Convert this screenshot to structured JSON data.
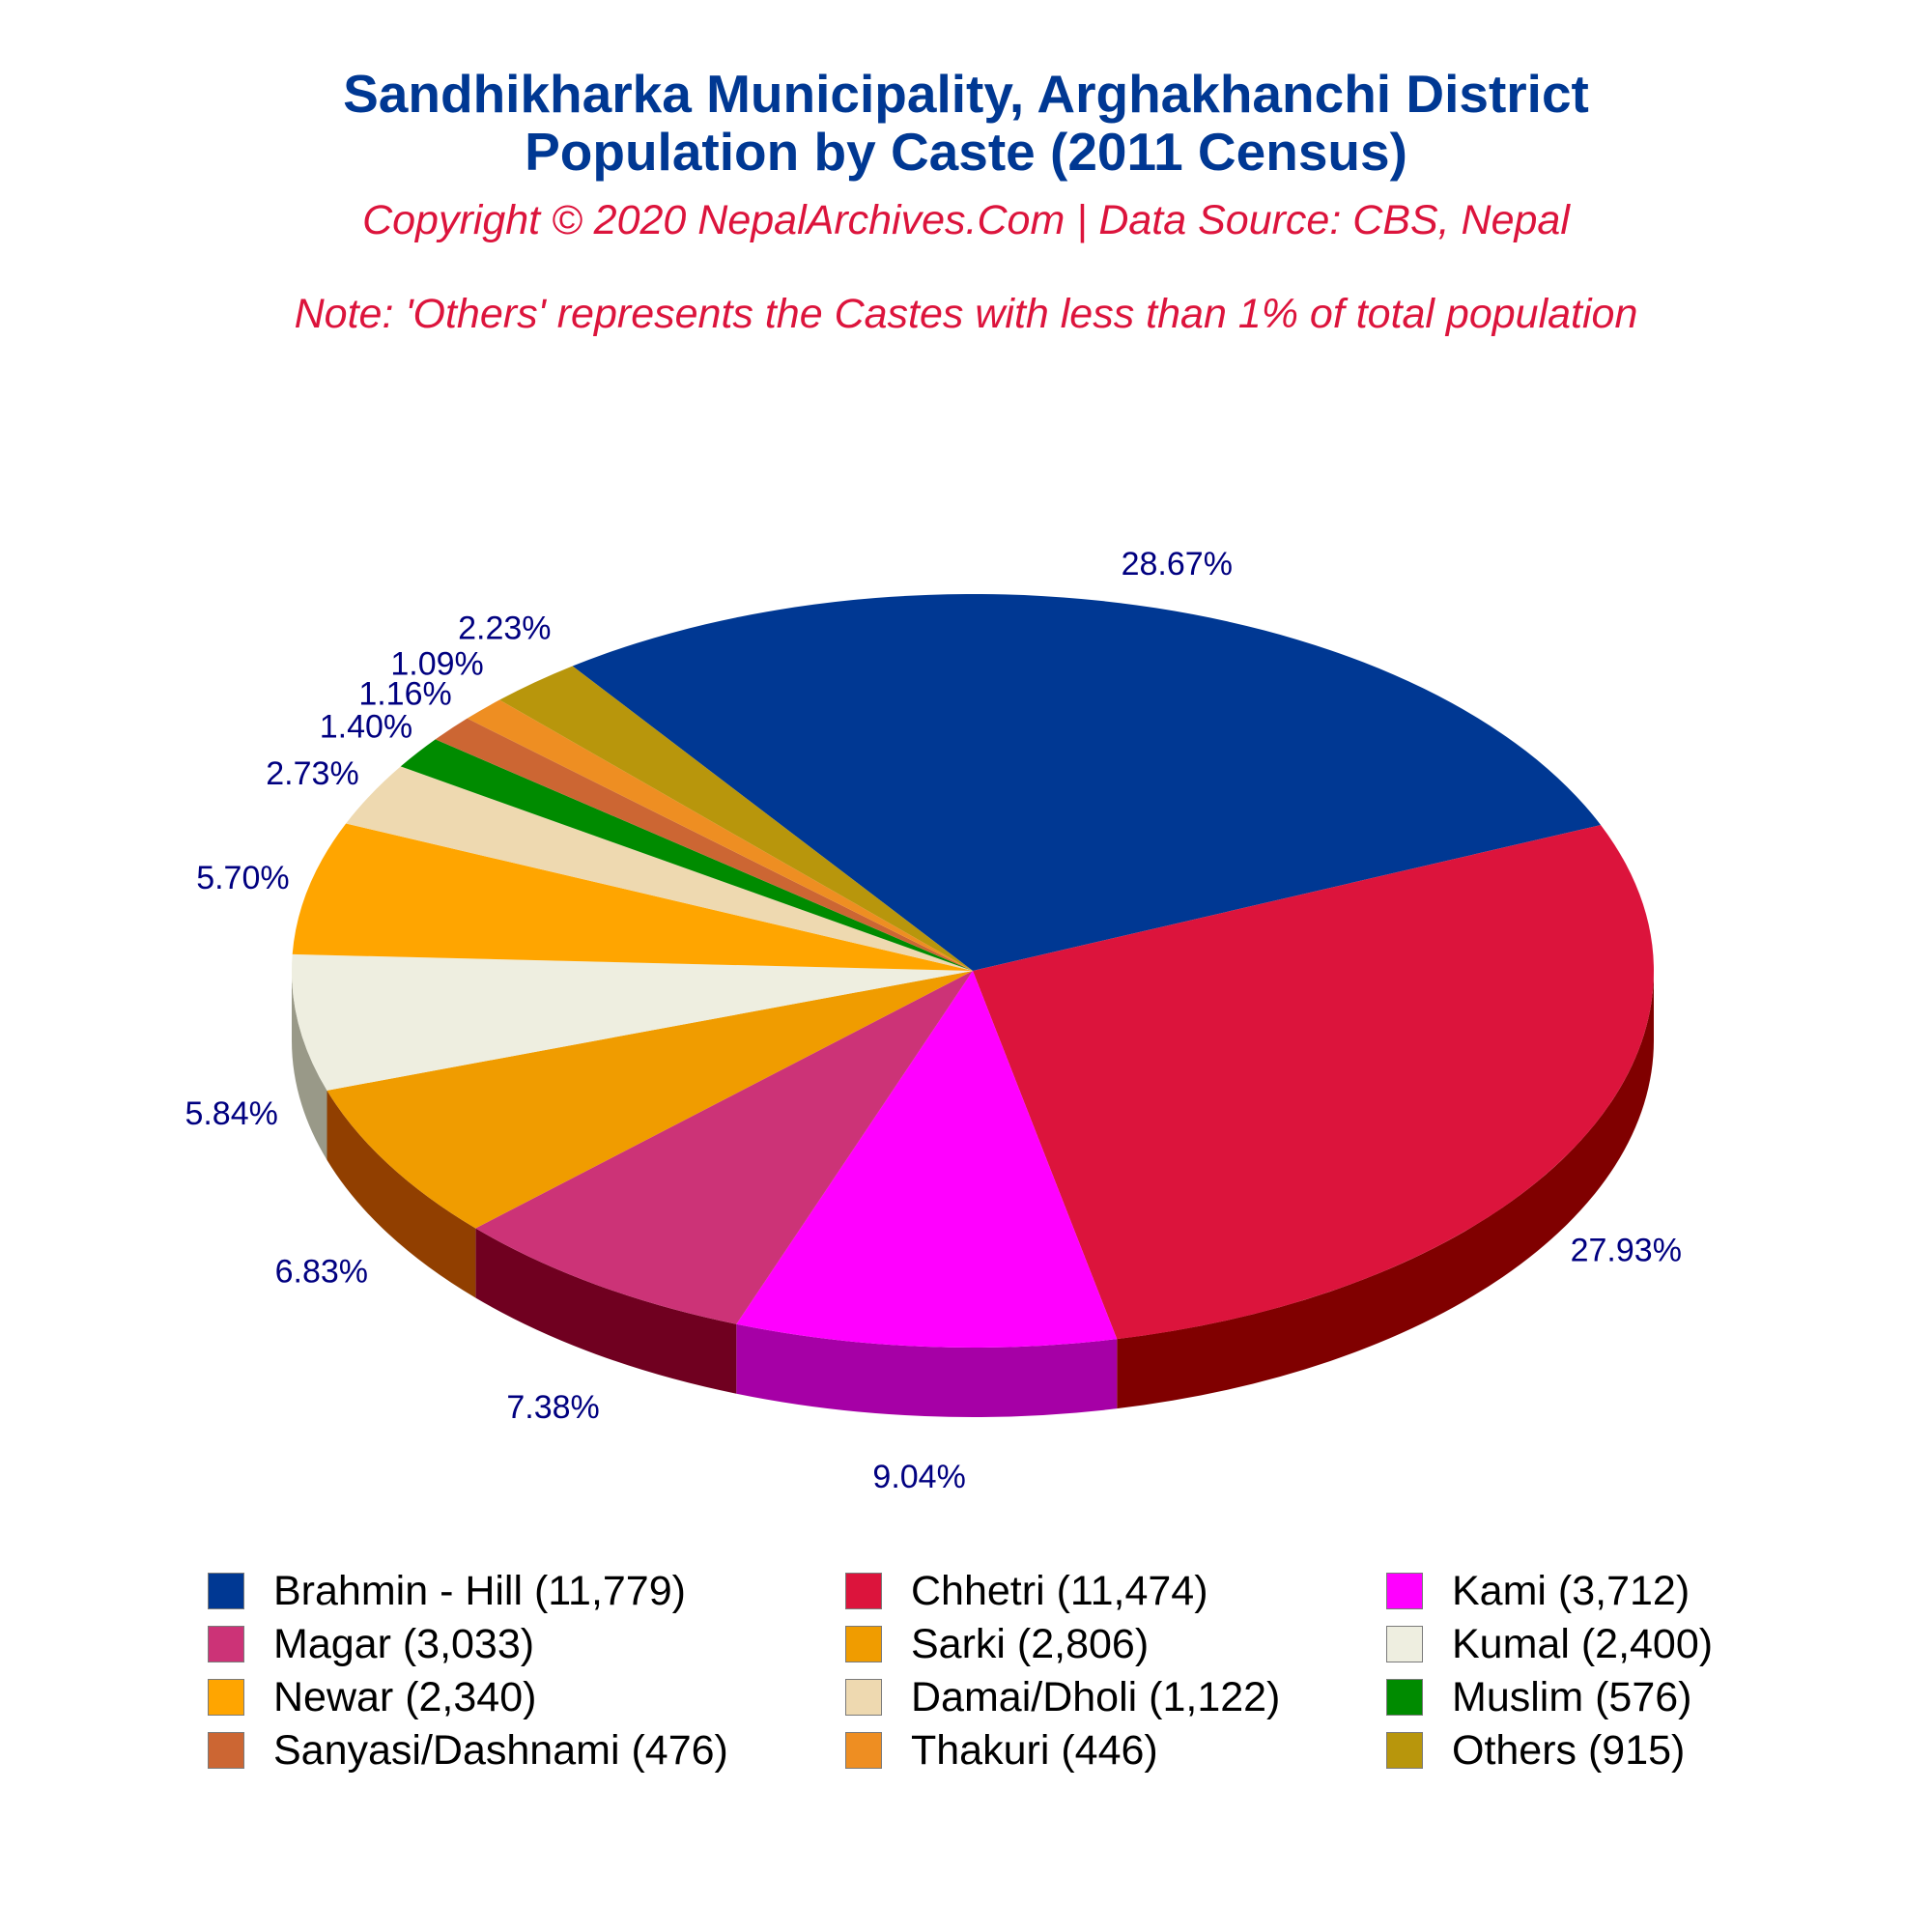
{
  "header": {
    "title_line1": "Sandhikharka Municipality, Arghakhanchi District",
    "title_line2": "Population by Caste (2011 Census)",
    "subtitle": "Copyright © 2020 NepalArchives.Com | Data Source: CBS, Nepal",
    "note": "Note: 'Others' represents the Castes with less than 1% of total population"
  },
  "colors": {
    "title": "#003893",
    "subtitle": "#DC143C",
    "percent_label": "#000080"
  },
  "chart_data": {
    "type": "pie",
    "style": "3d",
    "title": "Sandhikharka Municipality, Arghakhanchi District Population by Caste (2011 Census)",
    "legend_position": "bottom",
    "slices": [
      {
        "name": "Brahmin - Hill",
        "value": 11779,
        "percent": 28.67,
        "percent_label": "28.67%",
        "legend_label": "Brahmin - Hill (11,779)",
        "color": "#003893",
        "side_color": "#001c4a"
      },
      {
        "name": "Chhetri",
        "value": 11474,
        "percent": 27.93,
        "percent_label": "27.93%",
        "legend_label": "Chhetri (11,474)",
        "color": "#DC143C",
        "side_color": "#800000"
      },
      {
        "name": "Kami",
        "value": 3712,
        "percent": 9.04,
        "percent_label": "9.04%",
        "legend_label": "Kami (3,712)",
        "color": "#FF00FF",
        "side_color": "#A600A6"
      },
      {
        "name": "Magar",
        "value": 3033,
        "percent": 7.38,
        "percent_label": "7.38%",
        "legend_label": "Magar (3,033)",
        "color": "#CC3377",
        "side_color": "#700020"
      },
      {
        "name": "Sarki",
        "value": 2806,
        "percent": 6.83,
        "percent_label": "6.83%",
        "legend_label": "Sarki (2,806)",
        "color": "#F09C00",
        "side_color": "#913F00"
      },
      {
        "name": "Kumal",
        "value": 2400,
        "percent": 5.84,
        "percent_label": "5.84%",
        "legend_label": "Kumal (2,400)",
        "color": "#EEEEE0",
        "side_color": "#999988"
      },
      {
        "name": "Newar",
        "value": 2340,
        "percent": 5.7,
        "percent_label": "5.70%",
        "legend_label": "Newar (2,340)",
        "color": "#FFA500",
        "side_color": "#A34700"
      },
      {
        "name": "Damai/Dholi",
        "value": 1122,
        "percent": 2.73,
        "percent_label": "2.73%",
        "legend_label": "Damai/Dholi (1,122)",
        "color": "#EED9B0",
        "side_color": "#9E8860"
      },
      {
        "name": "Muslim",
        "value": 576,
        "percent": 1.4,
        "percent_label": "1.40%",
        "legend_label": "Muslim (576)",
        "color": "#008B00",
        "side_color": "#004D00"
      },
      {
        "name": "Sanyasi/Dashnami",
        "value": 476,
        "percent": 1.16,
        "percent_label": "1.16%",
        "legend_label": "Sanyasi/Dashnami (476)",
        "color": "#CC6633",
        "side_color": "#7A3A1A"
      },
      {
        "name": "Thakuri",
        "value": 446,
        "percent": 1.09,
        "percent_label": "1.09%",
        "legend_label": "Thakuri (446)",
        "color": "#EE8E22",
        "side_color": "#8A4E10"
      },
      {
        "name": "Others",
        "value": 915,
        "percent": 2.23,
        "percent_label": "2.23%",
        "legend_label": "Others (915)",
        "color": "#B8960C",
        "side_color": "#6E5A06"
      }
    ]
  }
}
